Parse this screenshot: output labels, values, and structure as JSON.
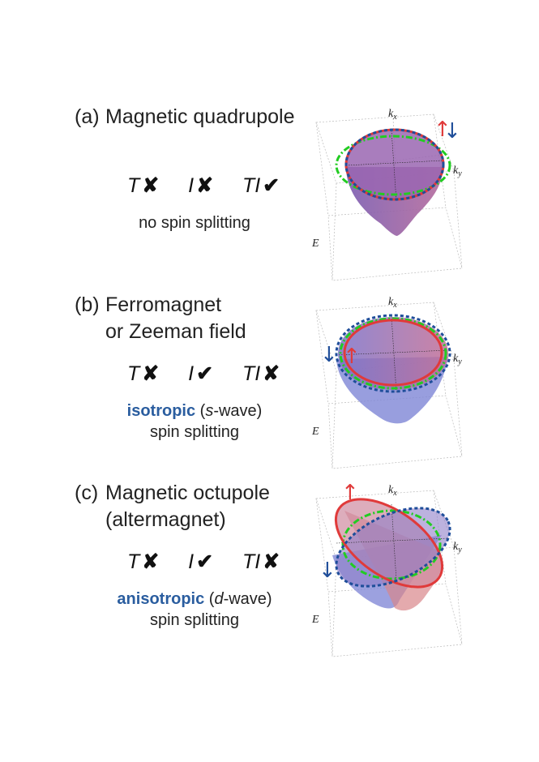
{
  "panels": [
    {
      "tag": "(a)",
      "title_lines": [
        "Magnetic quadrupole"
      ],
      "symmetries": [
        {
          "label": "T",
          "mark": "✘"
        },
        {
          "label": "I",
          "mark": "✘"
        },
        {
          "label": "TI",
          "mark": "✔"
        }
      ],
      "desc_emphasis": "",
      "desc_rest": "",
      "desc_line1": "no spin splitting",
      "desc_line2": "",
      "axes": {
        "kx": "k",
        "kx_sub": "x",
        "ky": "k",
        "ky_sub": "y",
        "e": "E"
      },
      "spin_up": "↑",
      "spin_down": "↓"
    },
    {
      "tag": "(b)",
      "title_lines": [
        "Ferromagnet",
        "or Zeeman field"
      ],
      "symmetries": [
        {
          "label": "T",
          "mark": "✘"
        },
        {
          "label": "I",
          "mark": "✔"
        },
        {
          "label": "TI",
          "mark": "✘"
        }
      ],
      "desc_emphasis": "isotropic",
      "desc_rest_pre": " (",
      "desc_italic": "s",
      "desc_rest_post": "-wave)",
      "desc_line2": "spin splitting",
      "axes": {
        "kx": "k",
        "kx_sub": "x",
        "ky": "k",
        "ky_sub": "y",
        "e": "E"
      },
      "spin_up": "↑",
      "spin_down": "↓"
    },
    {
      "tag": "(c)",
      "title_lines": [
        "Magnetic octupole",
        "(altermagnet)"
      ],
      "symmetries": [
        {
          "label": "T",
          "mark": "✘"
        },
        {
          "label": "I",
          "mark": "✔"
        },
        {
          "label": "TI",
          "mark": "✘"
        }
      ],
      "desc_emphasis": "anisotropic",
      "desc_rest_pre": " (",
      "desc_italic": "d",
      "desc_rest_post": "-wave)",
      "desc_line2": "spin splitting",
      "axes": {
        "kx": "k",
        "kx_sub": "x",
        "ky": "k",
        "ky_sub": "y",
        "e": "E"
      },
      "spin_up": "↑",
      "spin_down": "↓"
    }
  ],
  "colors": {
    "spin_up": "#e03a3a",
    "spin_down": "#1f4e9a",
    "guide": "#22cc22",
    "emphasis": "#2a5d9f"
  }
}
